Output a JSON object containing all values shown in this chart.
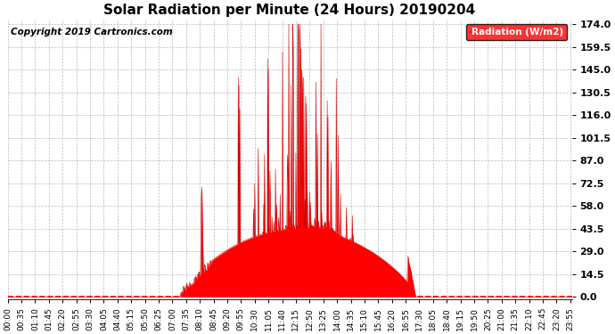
{
  "title": "Solar Radiation per Minute (24 Hours) 20190204",
  "copyright_text": "Copyright 2019 Cartronics.com",
  "legend_label": "Radiation (W/m2)",
  "yticks": [
    0.0,
    14.5,
    29.0,
    43.5,
    58.0,
    72.5,
    87.0,
    101.5,
    116.0,
    130.5,
    145.0,
    159.5,
    174.0
  ],
  "ymax": 174.0,
  "ymin": 0.0,
  "fill_color": "#FF0000",
  "line_color": "#CC0000",
  "background_color": "#FFFFFF",
  "grid_color": "#AAAAAA",
  "title_fontsize": 11,
  "tick_fontsize": 6.5,
  "copyright_fontsize": 7.5,
  "legend_bg": "#FF0000",
  "legend_text_color": "#FFFFFF",
  "x_tick_interval": 35,
  "total_minutes": 1440
}
